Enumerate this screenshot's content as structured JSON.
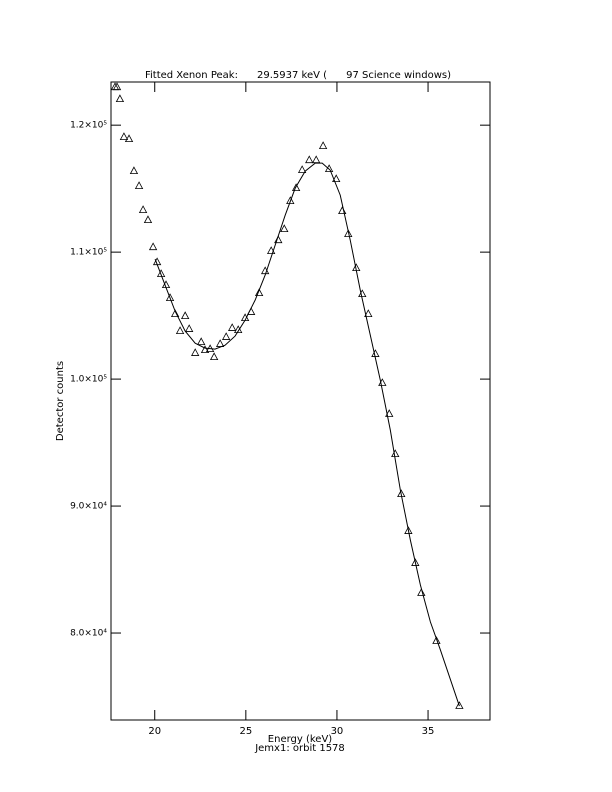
{
  "chart_data": {
    "type": "scatter",
    "title": "Fitted Xenon Peak:      29.5937 keV (      97 Science windows)",
    "x_label": "Energy (keV)",
    "subtitle": "Jemx1: orbit 1578",
    "y_label": "Detector counts",
    "xlim": [
      17.6,
      38.4
    ],
    "ylim": [
      73150,
      123400
    ],
    "xticks": [
      20,
      25,
      30,
      35
    ],
    "yticks": [
      {
        "value": 80000,
        "label": "8.0×10⁴"
      },
      {
        "value": 90000,
        "label": "9.0×10⁴"
      },
      {
        "value": 100000,
        "label": "1.0×10⁵"
      },
      {
        "value": 110000,
        "label": "1.1×10⁵"
      },
      {
        "value": 120000,
        "label": "1.2×10⁵"
      }
    ],
    "series": [
      {
        "name": "data",
        "kind": "markers",
        "color": "#000000",
        "x": [
          17.82,
          17.93,
          18.09,
          18.31,
          18.59,
          18.86,
          19.14,
          19.36,
          19.63,
          19.91,
          20.13,
          20.35,
          20.62,
          20.84,
          21.12,
          21.39,
          21.67,
          21.89,
          22.22,
          22.55,
          22.76,
          23.04,
          23.26,
          23.59,
          23.92,
          24.25,
          24.58,
          24.96,
          25.29,
          25.73,
          26.06,
          26.39,
          26.78,
          27.11,
          27.44,
          27.76,
          28.09,
          28.48,
          28.86,
          29.24,
          29.57,
          29.96,
          30.29,
          30.62,
          31.06,
          31.39,
          31.72,
          32.11,
          32.49,
          32.87,
          33.2,
          33.53,
          33.92,
          34.3,
          34.63,
          35.46,
          36.72
        ],
        "values": [
          122990,
          122990,
          122050,
          119060,
          118900,
          116380,
          115200,
          113310,
          112520,
          110390,
          109210,
          108270,
          107400,
          106380,
          105120,
          103780,
          104960,
          103940,
          102050,
          102910,
          102280,
          102360,
          101730,
          102760,
          103310,
          104020,
          103860,
          104800,
          105280,
          106770,
          108500,
          110080,
          110940,
          111810,
          114020,
          115040,
          116460,
          117240,
          117240,
          118350,
          116540,
          115750,
          113230,
          111420,
          108740,
          106690,
          105120,
          101970,
          99690,
          97250,
          94090,
          90940,
          88030,
          85510,
          83150,
          79370,
          74250
        ]
      },
      {
        "name": "fit",
        "kind": "line",
        "color": "#000000",
        "x": [
          20.02,
          20.57,
          21.12,
          21.67,
          22.22,
          22.76,
          23.31,
          23.86,
          24.41,
          24.96,
          25.51,
          26.06,
          26.61,
          27.16,
          27.71,
          28.26,
          28.81,
          29.19,
          29.63,
          30.18,
          30.73,
          31.28,
          31.83,
          32.38,
          32.93,
          33.48,
          34.03,
          34.58,
          35.13,
          35.68,
          36.72
        ],
        "values": [
          109450,
          107400,
          105350,
          103780,
          102830,
          102440,
          102360,
          102670,
          103390,
          104640,
          106220,
          108190,
          110550,
          112910,
          115040,
          116380,
          117010,
          117010,
          116460,
          114490,
          110940,
          107010,
          103460,
          99920,
          95980,
          91260,
          87320,
          83780,
          80870,
          78660,
          74250
        ]
      }
    ]
  }
}
